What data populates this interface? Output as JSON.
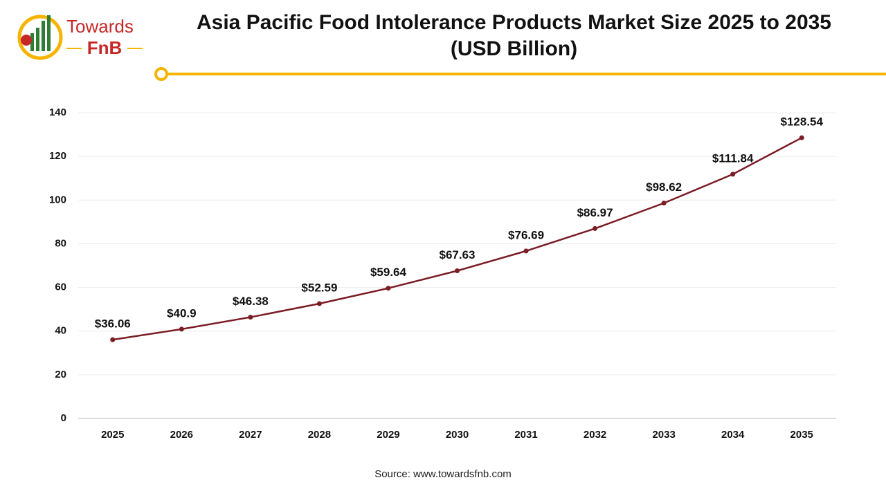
{
  "logo": {
    "line1": "Towards",
    "line2": "FnB"
  },
  "chart_data": {
    "type": "line",
    "title": "Asia Pacific Food Intolerance Products Market Size 2025 to 2035 (USD Billion)",
    "categories": [
      "2025",
      "2026",
      "2027",
      "2028",
      "2029",
      "2030",
      "2031",
      "2032",
      "2033",
      "2034",
      "2035"
    ],
    "values": [
      36.06,
      40.9,
      46.38,
      52.59,
      59.64,
      67.63,
      76.69,
      86.97,
      98.62,
      111.84,
      128.54
    ],
    "value_labels": [
      "$36.06",
      "$40.9",
      "$46.38",
      "$52.59",
      "$59.64",
      "$67.63",
      "$76.69",
      "$86.97",
      "$98.62",
      "$111.84",
      "$128.54"
    ],
    "color": "#7b1c24",
    "ylim": [
      0,
      140
    ],
    "yticks": [
      0,
      20,
      40,
      60,
      80,
      100,
      120,
      140
    ],
    "grid": true,
    "source": "Source: www.towardsfnb.com"
  }
}
